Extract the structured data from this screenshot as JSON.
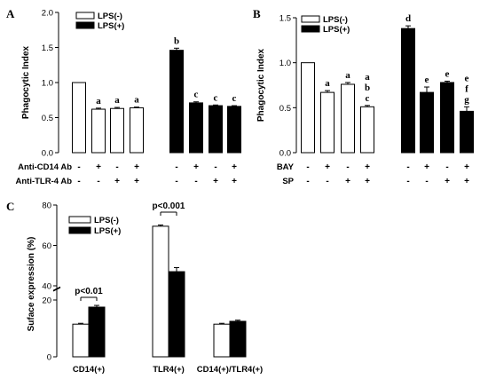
{
  "chart_data": [
    {
      "panel": "A",
      "type": "bar",
      "ylabel": "Phagocytic Index",
      "ylim": [
        0,
        2.0
      ],
      "yticks": [
        "0.0",
        "0.5",
        "1.0",
        "1.5",
        "2.0"
      ],
      "legend": [
        "LPS(-)",
        "LPS(+)"
      ],
      "row_labels": [
        "Anti-CD14 Ab",
        "Anti-TLR-4 Ab"
      ],
      "series": [
        {
          "name": "LPS(-)",
          "values": [
            1.0,
            0.62,
            0.63,
            0.64
          ],
          "errors": [
            0,
            0.015,
            0.015,
            0.01
          ],
          "letters": [
            "",
            "a",
            "a",
            "a"
          ]
        },
        {
          "name": "LPS(+)",
          "values": [
            1.46,
            0.71,
            0.67,
            0.66
          ],
          "errors": [
            0.03,
            0.015,
            0.01,
            0.01
          ],
          "letters": [
            "b",
            "c",
            "c",
            "c"
          ]
        }
      ],
      "rows": [
        [
          "-",
          "+",
          "-",
          "+",
          "-",
          "+",
          "-",
          "+"
        ],
        [
          "-",
          "-",
          "+",
          "+",
          "-",
          "-",
          "+",
          "+"
        ]
      ]
    },
    {
      "panel": "B",
      "type": "bar",
      "ylabel": "Phagocytic Index",
      "ylim": [
        0,
        1.5
      ],
      "yticks": [
        "0.0",
        "0.5",
        "1.0",
        "1.5"
      ],
      "legend": [
        "LPS(-)",
        "LPS(+)"
      ],
      "row_labels": [
        "BAY",
        "SP"
      ],
      "series": [
        {
          "name": "LPS(-)",
          "values": [
            1.0,
            0.67,
            0.76,
            0.51
          ],
          "errors": [
            0,
            0.02,
            0.02,
            0.015
          ],
          "letters": [
            "",
            "a",
            "a",
            "a\nb\nc"
          ]
        },
        {
          "name": "LPS(+)",
          "values": [
            1.38,
            0.67,
            0.78,
            0.46
          ],
          "errors": [
            0.03,
            0.06,
            0.015,
            0.05
          ],
          "letters": [
            "d",
            "e",
            "e",
            "e\nf\ng"
          ]
        }
      ],
      "rows": [
        [
          "-",
          "+",
          "-",
          "+",
          "-",
          "+",
          "-",
          "+"
        ],
        [
          "-",
          "-",
          "+",
          "+",
          "-",
          "-",
          "+",
          "+"
        ]
      ]
    },
    {
      "panel": "C",
      "type": "bar",
      "ylabel": "Suface expression (%)",
      "categories": [
        "CD14(+)",
        "TLR4(+)",
        "CD14(+)/TLR4(+)"
      ],
      "yticks_lower": [
        "0",
        "20"
      ],
      "yticks_upper": [
        "40",
        "60",
        "80"
      ],
      "axis_break": [
        25,
        40
      ],
      "legend": [
        "LPS(-)",
        "LPS(+)"
      ],
      "series": [
        {
          "name": "LPS(-)",
          "values": [
            11.5,
            69.5,
            11.5
          ],
          "errors": [
            0.3,
            0.6,
            0.3
          ]
        },
        {
          "name": "LPS(+)",
          "values": [
            17.5,
            47.0,
            12.5
          ],
          "errors": [
            0.6,
            2.0,
            0.4
          ]
        }
      ],
      "annotations": [
        "p<0.01",
        "p<0.001"
      ]
    }
  ]
}
